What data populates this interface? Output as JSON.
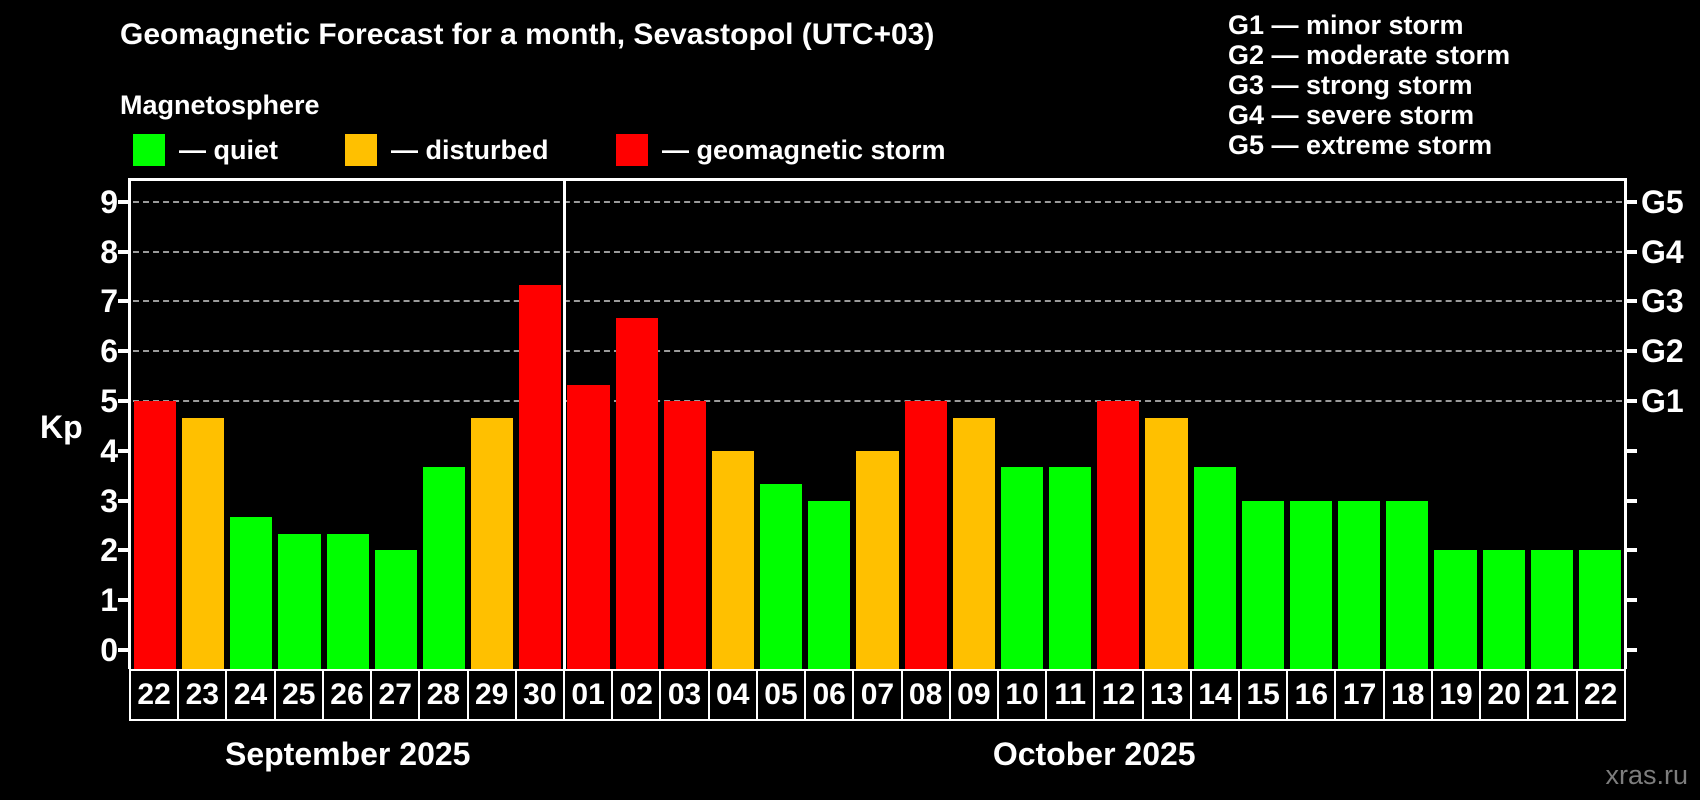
{
  "header": {
    "title": "Geomagnetic Forecast for a month, Sevastopol (UTC+03)",
    "subtitle": "Magnetosphere"
  },
  "legend": {
    "items": [
      {
        "id": "quiet",
        "label": "— quiet"
      },
      {
        "id": "disturbed",
        "label": "— disturbed"
      },
      {
        "id": "storm",
        "label": "— geomagnetic storm"
      }
    ]
  },
  "storm_scale": {
    "lines": [
      "G1 — minor storm",
      "G2 — moderate storm",
      "G3 — strong storm",
      "G4 — severe storm",
      "G5 — extreme storm"
    ]
  },
  "watermark": "xras.ru",
  "colors": {
    "quiet": "#00ff00",
    "disturbed": "#ffc000",
    "storm": "#ff0000",
    "background": "#000000",
    "text": "#ffffff",
    "gridline": "#9b9b9b",
    "watermark_text": "#7d7d7d"
  },
  "chart_data": {
    "type": "bar",
    "title": "Geomagnetic Forecast for a month, Sevastopol (UTC+03)",
    "ylabel": "Kp",
    "ylim": [
      -0.38,
      9.42
    ],
    "yticks": [
      0,
      1,
      2,
      3,
      4,
      5,
      6,
      7,
      8,
      9
    ],
    "gridlines": [
      5,
      6,
      7,
      8,
      9
    ],
    "grid_style": "dashed",
    "legend_position": "top-left",
    "right_axis_labels": [
      {
        "value": 5,
        "label": "G1"
      },
      {
        "value": 6,
        "label": "G2"
      },
      {
        "value": 7,
        "label": "G3"
      },
      {
        "value": 8,
        "label": "G4"
      },
      {
        "value": 9,
        "label": "G5"
      }
    ],
    "months": [
      {
        "label": "September 2025",
        "bars": [
          {
            "day": "22",
            "kp": 5,
            "level": "storm"
          },
          {
            "day": "23",
            "kp": 4.67,
            "level": "disturbed"
          },
          {
            "day": "24",
            "kp": 2.67,
            "level": "quiet"
          },
          {
            "day": "25",
            "kp": 2.33,
            "level": "quiet"
          },
          {
            "day": "26",
            "kp": 2.33,
            "level": "quiet"
          },
          {
            "day": "27",
            "kp": 2,
            "level": "quiet"
          },
          {
            "day": "28",
            "kp": 3.67,
            "level": "quiet"
          },
          {
            "day": "29",
            "kp": 4.67,
            "level": "disturbed"
          },
          {
            "day": "30",
            "kp": 7.33,
            "level": "storm"
          }
        ]
      },
      {
        "label": "October 2025",
        "bars": [
          {
            "day": "01",
            "kp": 5.33,
            "level": "storm"
          },
          {
            "day": "02",
            "kp": 6.67,
            "level": "storm"
          },
          {
            "day": "03",
            "kp": 5,
            "level": "storm"
          },
          {
            "day": "04",
            "kp": 4,
            "level": "disturbed"
          },
          {
            "day": "05",
            "kp": 3.33,
            "level": "quiet"
          },
          {
            "day": "06",
            "kp": 3,
            "level": "quiet"
          },
          {
            "day": "07",
            "kp": 4,
            "level": "disturbed"
          },
          {
            "day": "08",
            "kp": 5,
            "level": "storm"
          },
          {
            "day": "09",
            "kp": 4.67,
            "level": "disturbed"
          },
          {
            "day": "10",
            "kp": 3.67,
            "level": "quiet"
          },
          {
            "day": "11",
            "kp": 3.67,
            "level": "quiet"
          },
          {
            "day": "12",
            "kp": 5,
            "level": "storm"
          },
          {
            "day": "13",
            "kp": 4.67,
            "level": "disturbed"
          },
          {
            "day": "14",
            "kp": 3.67,
            "level": "quiet"
          },
          {
            "day": "15",
            "kp": 3,
            "level": "quiet"
          },
          {
            "day": "16",
            "kp": 3,
            "level": "quiet"
          },
          {
            "day": "17",
            "kp": 3,
            "level": "quiet"
          },
          {
            "day": "18",
            "kp": 3,
            "level": "quiet"
          },
          {
            "day": "19",
            "kp": 2,
            "level": "quiet"
          },
          {
            "day": "20",
            "kp": 2,
            "level": "quiet"
          },
          {
            "day": "21",
            "kp": 2,
            "level": "quiet"
          },
          {
            "day": "22",
            "kp": 2,
            "level": "quiet"
          }
        ]
      }
    ]
  }
}
